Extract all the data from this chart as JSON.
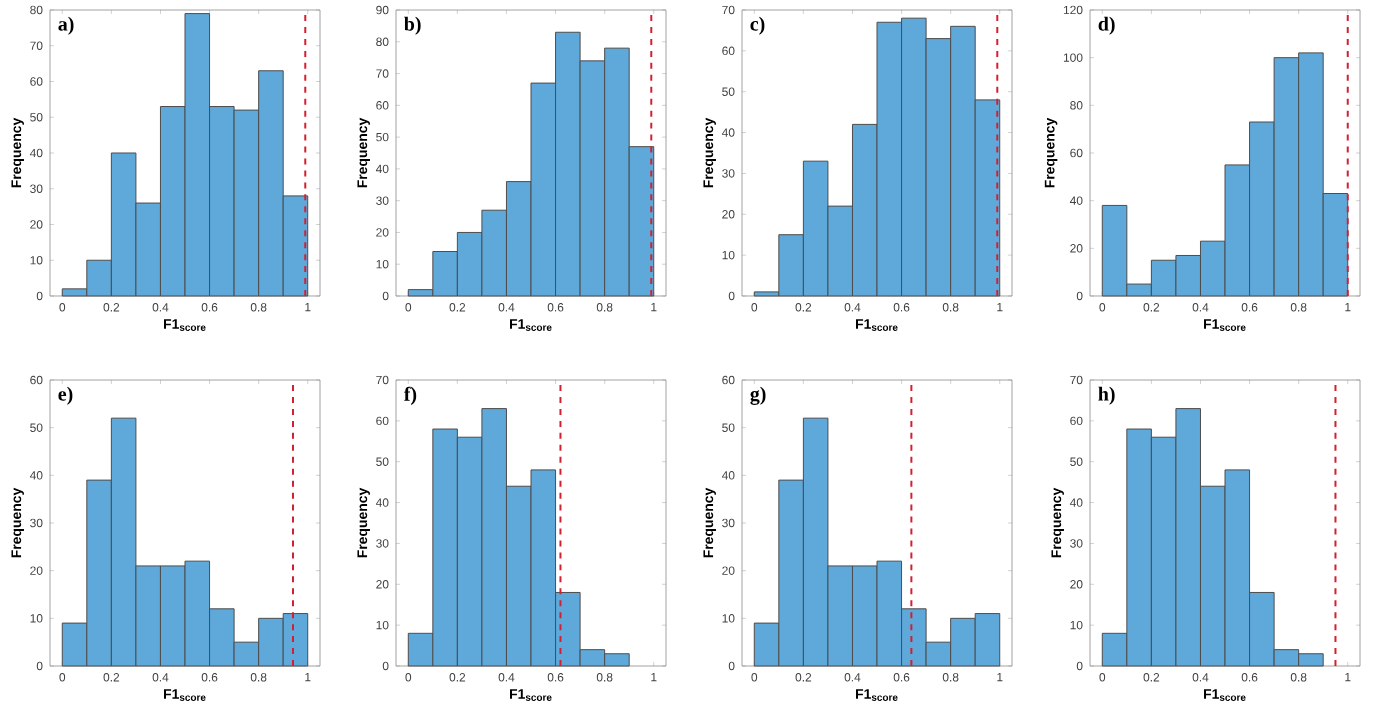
{
  "chart_data": [
    {
      "type": "histogram",
      "title": "a)",
      "xlabel": "F1$_{score}$",
      "ylabel": "Frequency",
      "color": "#5fa8da",
      "bins": [
        0,
        0.1,
        0.2,
        0.3,
        0.4,
        0.5,
        0.6,
        0.7,
        0.8,
        0.9,
        1
      ],
      "values": [
        2,
        10,
        40,
        26,
        53,
        79,
        53,
        52,
        63,
        28
      ],
      "xlim": [
        -0.05,
        1.05
      ],
      "ylim": [
        0,
        80
      ],
      "xticks": [
        0,
        0.2,
        0.4,
        0.6,
        0.8,
        1
      ],
      "yticks": [
        0,
        10,
        20,
        30,
        40,
        50,
        60,
        70,
        80
      ],
      "ref_lines": [
        {
          "axis": "x",
          "value": 0.99,
          "color": "#d32030",
          "line_style": "dashed"
        }
      ],
      "grid": false
    },
    {
      "type": "histogram",
      "title": "b)",
      "xlabel": "F1$_{score}$",
      "ylabel": "Frequency",
      "color": "#5fa8da",
      "bins": [
        0,
        0.1,
        0.2,
        0.3,
        0.4,
        0.5,
        0.6,
        0.7,
        0.8,
        0.9,
        1
      ],
      "values": [
        2,
        14,
        20,
        27,
        36,
        67,
        83,
        74,
        78,
        47
      ],
      "xlim": [
        -0.05,
        1.05
      ],
      "ylim": [
        0,
        90
      ],
      "xticks": [
        0,
        0.2,
        0.4,
        0.6,
        0.8,
        1
      ],
      "yticks": [
        0,
        10,
        20,
        30,
        40,
        50,
        60,
        70,
        80,
        90
      ],
      "ref_lines": [
        {
          "axis": "x",
          "value": 0.99,
          "color": "#d32030",
          "line_style": "dashed"
        }
      ],
      "grid": false
    },
    {
      "type": "histogram",
      "title": "c)",
      "xlabel": "F1$_{score}$",
      "ylabel": "Frequency",
      "color": "#5fa8da",
      "bins": [
        0,
        0.1,
        0.2,
        0.3,
        0.4,
        0.5,
        0.6,
        0.7,
        0.8,
        0.9,
        1
      ],
      "values": [
        1,
        15,
        33,
        22,
        42,
        67,
        68,
        63,
        66,
        48
      ],
      "xlim": [
        -0.05,
        1.05
      ],
      "ylim": [
        0,
        70
      ],
      "xticks": [
        0,
        0.2,
        0.4,
        0.6,
        0.8,
        1
      ],
      "yticks": [
        0,
        10,
        20,
        30,
        40,
        50,
        60,
        70
      ],
      "ref_lines": [
        {
          "axis": "x",
          "value": 0.99,
          "color": "#d32030",
          "line_style": "dashed"
        }
      ],
      "grid": false
    },
    {
      "type": "histogram",
      "title": "d)",
      "xlabel": "F1$_{score}$",
      "ylabel": "Frequency",
      "color": "#5fa8da",
      "bins": [
        0,
        0.1,
        0.2,
        0.3,
        0.4,
        0.5,
        0.6,
        0.7,
        0.8,
        0.9,
        1
      ],
      "values": [
        38,
        5,
        15,
        17,
        23,
        55,
        73,
        100,
        102,
        43
      ],
      "xlim": [
        -0.05,
        1.05
      ],
      "ylim": [
        0,
        120
      ],
      "xticks": [
        0,
        0.2,
        0.4,
        0.6,
        0.8,
        1
      ],
      "yticks": [
        0,
        20,
        40,
        60,
        80,
        100,
        120
      ],
      "ref_lines": [
        {
          "axis": "x",
          "value": 1.0,
          "color": "#d32030",
          "line_style": "dashed"
        }
      ],
      "grid": false
    },
    {
      "type": "histogram",
      "title": "e)",
      "xlabel": "F1$_{score}$",
      "ylabel": "Frequency",
      "color": "#5fa8da",
      "bins": [
        0,
        0.1,
        0.2,
        0.3,
        0.4,
        0.5,
        0.6,
        0.7,
        0.8,
        0.9,
        1
      ],
      "values": [
        9,
        39,
        52,
        21,
        21,
        22,
        12,
        5,
        10,
        11
      ],
      "xlim": [
        -0.05,
        1.05
      ],
      "ylim": [
        0,
        60
      ],
      "xticks": [
        0,
        0.2,
        0.4,
        0.6,
        0.8,
        1
      ],
      "yticks": [
        0,
        10,
        20,
        30,
        40,
        50,
        60
      ],
      "ref_lines": [
        {
          "axis": "x",
          "value": 0.94,
          "color": "#d32030",
          "line_style": "dashed"
        }
      ],
      "grid": false
    },
    {
      "type": "histogram",
      "title": "f)",
      "xlabel": "F1$_{score}$",
      "ylabel": "Frequency",
      "color": "#5fa8da",
      "bins": [
        0,
        0.1,
        0.2,
        0.3,
        0.4,
        0.5,
        0.6,
        0.7,
        0.8,
        0.9
      ],
      "values": [
        8,
        58,
        56,
        63,
        44,
        48,
        18,
        4,
        3
      ],
      "xlim": [
        -0.05,
        1.05
      ],
      "ylim": [
        0,
        70
      ],
      "xticks": [
        0,
        0.2,
        0.4,
        0.6,
        0.8,
        1
      ],
      "yticks": [
        0,
        10,
        20,
        30,
        40,
        50,
        60,
        70
      ],
      "ref_lines": [
        {
          "axis": "x",
          "value": 0.62,
          "color": "#d32030",
          "line_style": "dashed"
        }
      ],
      "grid": false
    },
    {
      "type": "histogram",
      "title": "g)",
      "xlabel": "F1$_{score}$",
      "ylabel": "Frequency",
      "color": "#5fa8da",
      "bins": [
        0,
        0.1,
        0.2,
        0.3,
        0.4,
        0.5,
        0.6,
        0.7,
        0.8,
        0.9,
        1
      ],
      "values": [
        9,
        39,
        52,
        21,
        21,
        22,
        12,
        5,
        10,
        11
      ],
      "xlim": [
        -0.05,
        1.05
      ],
      "ylim": [
        0,
        60
      ],
      "xticks": [
        0,
        0.2,
        0.4,
        0.6,
        0.8,
        1
      ],
      "yticks": [
        0,
        10,
        20,
        30,
        40,
        50,
        60
      ],
      "ref_lines": [
        {
          "axis": "x",
          "value": 0.64,
          "color": "#d32030",
          "line_style": "dashed"
        }
      ],
      "grid": false
    },
    {
      "type": "histogram",
      "title": "h)",
      "xlabel": "F1$_{score}$",
      "ylabel": "Frequency",
      "color": "#5fa8da",
      "bins": [
        0,
        0.1,
        0.2,
        0.3,
        0.4,
        0.5,
        0.6,
        0.7,
        0.8,
        0.9
      ],
      "values": [
        8,
        58,
        56,
        63,
        44,
        48,
        18,
        4,
        3
      ],
      "xlim": [
        -0.05,
        1.05
      ],
      "ylim": [
        0,
        70
      ],
      "xticks": [
        0,
        0.2,
        0.4,
        0.6,
        0.8,
        1
      ],
      "yticks": [
        0,
        10,
        20,
        30,
        40,
        50,
        60,
        70
      ],
      "ref_lines": [
        {
          "axis": "x",
          "value": 0.95,
          "color": "#d32030",
          "line_style": "dashed"
        }
      ],
      "grid": false
    }
  ]
}
